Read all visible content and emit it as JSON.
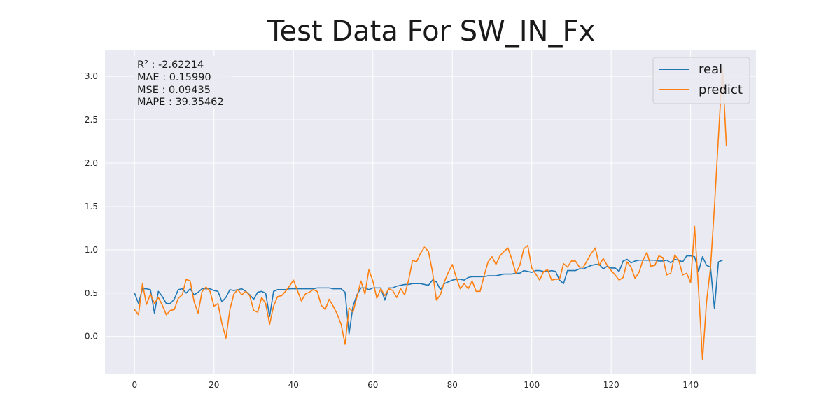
{
  "chart_data": {
    "type": "line",
    "title": "Test Data For SW_IN_Fx",
    "xlabel": "",
    "ylabel": "",
    "xlim": [
      -7.45,
      156.45
    ],
    "ylim": [
      -0.43,
      3.3
    ],
    "xticks": [
      0,
      20,
      40,
      60,
      80,
      100,
      120,
      140
    ],
    "yticks": [
      0.0,
      0.5,
      1.0,
      1.5,
      2.0,
      2.5,
      3.0
    ],
    "xtick_labels": [
      "0",
      "20",
      "40",
      "60",
      "80",
      "100",
      "120",
      "140"
    ],
    "ytick_labels": [
      "0.0",
      "0.5",
      "1.0",
      "1.5",
      "2.0",
      "2.5",
      "3.0"
    ],
    "grid": true,
    "legend_position": "top-right",
    "metrics": [
      "R² : -2.62214",
      "MAE : 0.15990",
      "MSE : 0.09435",
      "MAPE : 39.35462"
    ],
    "series": [
      {
        "name": "real",
        "color": "#1f77b4",
        "values": [
          0.5,
          0.38,
          0.55,
          0.55,
          0.54,
          0.27,
          0.52,
          0.46,
          0.38,
          0.38,
          0.43,
          0.54,
          0.55,
          0.5,
          0.55,
          0.48,
          0.51,
          0.55,
          0.55,
          0.55,
          0.53,
          0.52,
          0.4,
          0.45,
          0.54,
          0.53,
          0.54,
          0.55,
          0.52,
          0.48,
          0.43,
          0.51,
          0.52,
          0.5,
          0.23,
          0.52,
          0.54,
          0.54,
          0.54,
          0.55,
          0.55,
          0.55,
          0.55,
          0.55,
          0.55,
          0.55,
          0.56,
          0.56,
          0.56,
          0.56,
          0.55,
          0.55,
          0.55,
          0.51,
          0.03,
          0.35,
          0.48,
          0.56,
          0.56,
          0.54,
          0.56,
          0.56,
          0.56,
          0.42,
          0.56,
          0.56,
          0.58,
          0.59,
          0.6,
          0.6,
          0.61,
          0.61,
          0.61,
          0.6,
          0.59,
          0.65,
          0.63,
          0.54,
          0.61,
          0.63,
          0.65,
          0.66,
          0.66,
          0.65,
          0.68,
          0.69,
          0.69,
          0.69,
          0.69,
          0.7,
          0.7,
          0.7,
          0.71,
          0.72,
          0.72,
          0.72,
          0.73,
          0.73,
          0.76,
          0.75,
          0.74,
          0.76,
          0.76,
          0.75,
          0.75,
          0.76,
          0.75,
          0.65,
          0.61,
          0.76,
          0.76,
          0.76,
          0.78,
          0.78,
          0.8,
          0.82,
          0.83,
          0.83,
          0.78,
          0.81,
          0.79,
          0.79,
          0.75,
          0.87,
          0.89,
          0.85,
          0.87,
          0.88,
          0.88,
          0.88,
          0.88,
          0.88,
          0.87,
          0.87,
          0.88,
          0.85,
          0.89,
          0.88,
          0.86,
          0.93,
          0.93,
          0.92,
          0.75,
          0.92,
          0.82,
          0.8,
          0.32,
          0.86,
          0.88
        ]
      },
      {
        "name": "predict",
        "color": "#ff7f0e",
        "values": [
          0.31,
          0.25,
          0.61,
          0.37,
          0.49,
          0.38,
          0.45,
          0.36,
          0.25,
          0.3,
          0.31,
          0.44,
          0.48,
          0.66,
          0.64,
          0.4,
          0.27,
          0.52,
          0.57,
          0.52,
          0.35,
          0.38,
          0.15,
          -0.02,
          0.31,
          0.49,
          0.54,
          0.48,
          0.52,
          0.47,
          0.3,
          0.28,
          0.45,
          0.38,
          0.14,
          0.35,
          0.46,
          0.47,
          0.52,
          0.58,
          0.65,
          0.53,
          0.41,
          0.49,
          0.51,
          0.54,
          0.52,
          0.36,
          0.31,
          0.43,
          0.35,
          0.26,
          0.14,
          -0.09,
          0.33,
          0.28,
          0.46,
          0.64,
          0.49,
          0.77,
          0.64,
          0.44,
          0.55,
          0.47,
          0.55,
          0.53,
          0.45,
          0.55,
          0.48,
          0.65,
          0.88,
          0.86,
          0.96,
          1.03,
          0.98,
          0.75,
          0.42,
          0.48,
          0.63,
          0.74,
          0.83,
          0.68,
          0.55,
          0.61,
          0.55,
          0.64,
          0.52,
          0.52,
          0.7,
          0.86,
          0.92,
          0.83,
          0.93,
          0.98,
          1.02,
          0.89,
          0.73,
          0.82,
          1.01,
          1.05,
          0.79,
          0.72,
          0.65,
          0.75,
          0.77,
          0.65,
          0.66,
          0.66,
          0.84,
          0.8,
          0.87,
          0.87,
          0.8,
          0.8,
          0.88,
          0.96,
          1.02,
          0.82,
          0.9,
          0.82,
          0.76,
          0.71,
          0.65,
          0.68,
          0.86,
          0.8,
          0.67,
          0.74,
          0.88,
          0.97,
          0.81,
          0.82,
          0.93,
          0.91,
          0.71,
          0.73,
          0.94,
          0.88,
          0.71,
          0.73,
          0.62,
          1.27,
          0.53,
          -0.27,
          0.4,
          0.79,
          1.5,
          2.3,
          3.1,
          2.2
        ]
      }
    ]
  }
}
